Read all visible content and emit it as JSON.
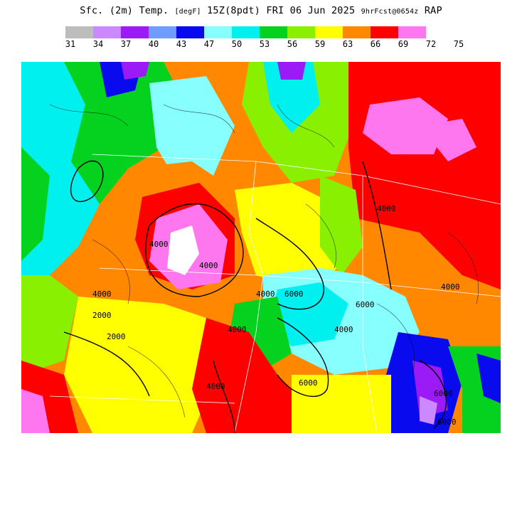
{
  "title": {
    "field": "Sfc. (2m) Temp.",
    "units": "[degF]",
    "valid": "15Z(8pdt) FRI 06 Jun 2025",
    "forecast": "9hrFcst@0654z",
    "model": "RAP"
  },
  "colorbar": {
    "colors": [
      "#bdbdbd",
      "#cc88ff",
      "#9a1bf5",
      "#6e9cff",
      "#0a0aee",
      "#88ffff",
      "#00f0f0",
      "#05d21e",
      "#88f000",
      "#ffff00",
      "#ff8800",
      "#ff0000",
      "#ff77ee"
    ],
    "ticks": [
      "31",
      "34",
      "37",
      "40",
      "43",
      "47",
      "50",
      "53",
      "56",
      "59",
      "63",
      "66",
      "69",
      "72",
      "75"
    ]
  },
  "map": {
    "contour_labels": [
      "4000",
      "4000",
      "4000",
      "4000",
      "4000",
      "6000",
      "6000",
      "4000",
      "4000",
      "6000",
      "4000",
      "6000",
      "2000",
      "2000",
      "4000",
      "6000"
    ]
  }
}
